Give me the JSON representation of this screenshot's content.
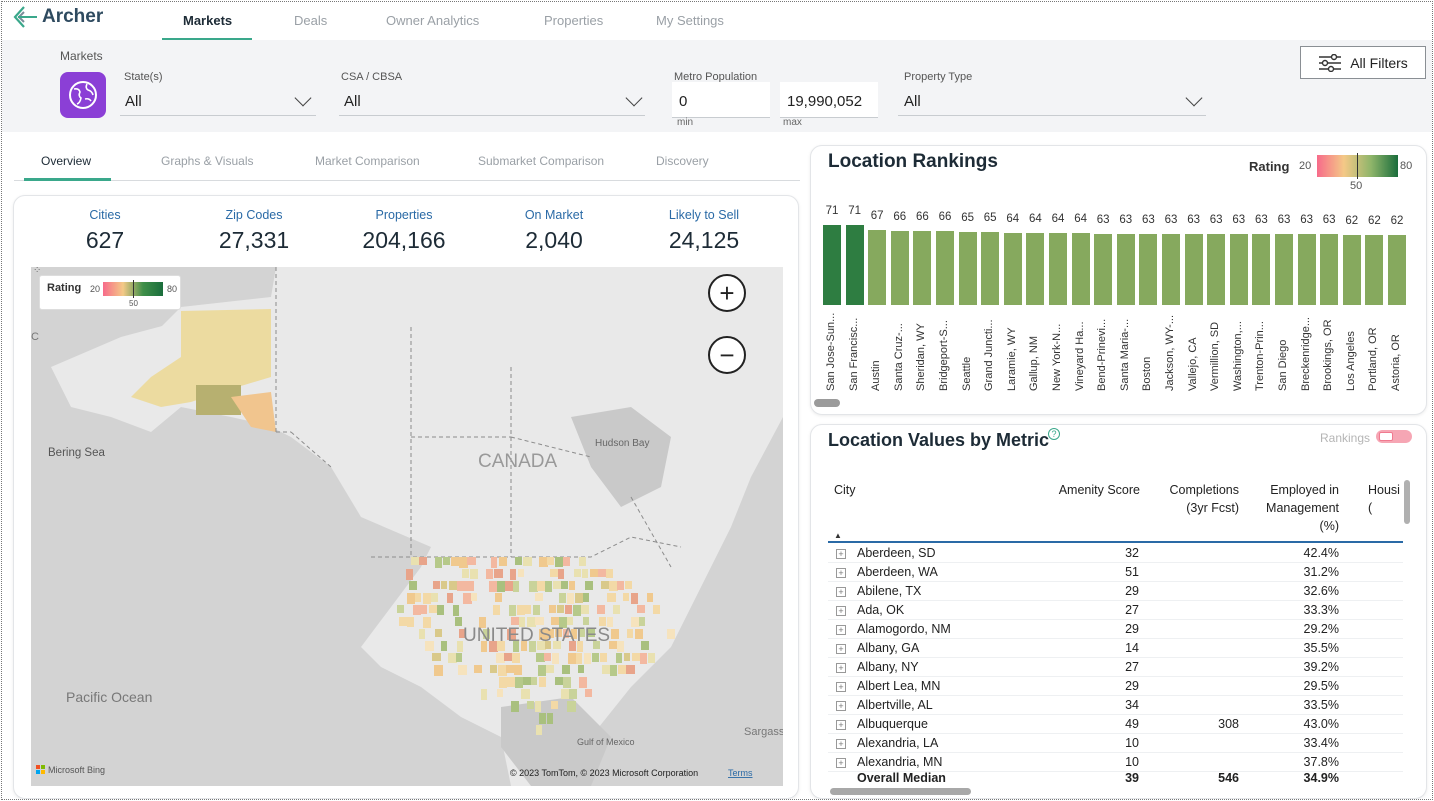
{
  "app": {
    "name": "Archer"
  },
  "nav": {
    "tabs": [
      "Markets",
      "Deals",
      "Owner Analytics",
      "Properties",
      "My Settings"
    ],
    "active": "Markets"
  },
  "filters": {
    "section_label": "Markets",
    "states": {
      "label": "State(s)",
      "value": "All"
    },
    "csa": {
      "label": "CSA / CBSA",
      "value": "All"
    },
    "metro_population": {
      "label": "Metro Population",
      "min": "0",
      "max": "19,990,052",
      "min_caption": "min",
      "max_caption": "max"
    },
    "property_type": {
      "label": "Property Type",
      "value": "All"
    },
    "all_filters_label": "All Filters"
  },
  "subtabs": [
    "Overview",
    "Graphs & Visuals",
    "Market Comparison",
    "Submarket Comparison",
    "Discovery"
  ],
  "kpis": [
    {
      "label": "Cities",
      "value": "627"
    },
    {
      "label": "Zip Codes",
      "value": "27,331"
    },
    {
      "label": "Properties",
      "value": "204,166"
    },
    {
      "label": "On Market",
      "value": "2,040"
    },
    {
      "label": "Likely to Sell",
      "value": "24,125"
    }
  ],
  "map": {
    "legend": {
      "title": "Rating",
      "min": "20",
      "mid": "50",
      "max": "80"
    },
    "labels": {
      "bering": "Bering Sea",
      "canada": "CANADA",
      "hudson": "Hudson Bay",
      "us": "UNITED STATES",
      "pacific": "Pacific Ocean",
      "gulf": "Gulf of Mexico",
      "sargasso": "Sargass",
      "c": "C"
    },
    "attribution": "© 2023 TomTom, © 2023 Microsoft Corporation",
    "terms": "Terms",
    "bing": "Microsoft Bing"
  },
  "rankings": {
    "title": "Location Rankings",
    "legend": {
      "title": "Rating",
      "min": "20",
      "mid": "50",
      "max": "80"
    }
  },
  "chart_data": {
    "type": "bar",
    "title": "Location Rankings",
    "categories": [
      "San Jose-Sun...",
      "San Francisc...",
      "Austin",
      "Santa Cruz-...",
      "Sheridan, WY",
      "Bridgeport-S...",
      "Seattle",
      "Grand Juncti...",
      "Laramie, WY",
      "Gallup, NM",
      "New York-N...",
      "Vineyard Ha...",
      "Bend-Prinevi...",
      "Santa Maria-...",
      "Boston",
      "Jackson, WY-...",
      "Vallejo, CA",
      "Vermillion, SD",
      "Washington,...",
      "Trenton-Prin...",
      "San Diego",
      "Breckenridge...",
      "Brookings, OR",
      "Los Angeles",
      "Portland, OR",
      "Astoria, OR"
    ],
    "values": [
      71,
      71,
      67,
      66,
      66,
      66,
      65,
      65,
      64,
      64,
      64,
      64,
      63,
      63,
      63,
      63,
      63,
      63,
      63,
      63,
      63,
      63,
      63,
      62,
      62,
      62
    ],
    "ylim": [
      0,
      71
    ],
    "colors": {
      "high": "#2e7d41",
      "mid": "#86a95e"
    }
  },
  "metrics": {
    "title": "Location Values by Metric",
    "help_icon": "?",
    "toggle_label": "Rankings",
    "columns": [
      "City",
      "Amenity Score",
      "Completions (3yr Fcst)",
      "Employed in Management (%)",
      "Housi ("
    ],
    "rows": [
      {
        "city": "Aberdeen, SD",
        "amenity": "32",
        "completions": "",
        "employed": "42.4%"
      },
      {
        "city": "Aberdeen, WA",
        "amenity": "51",
        "completions": "",
        "employed": "31.2%"
      },
      {
        "city": "Abilene, TX",
        "amenity": "29",
        "completions": "",
        "employed": "32.6%"
      },
      {
        "city": "Ada, OK",
        "amenity": "27",
        "completions": "",
        "employed": "33.3%"
      },
      {
        "city": "Alamogordo, NM",
        "amenity": "29",
        "completions": "",
        "employed": "29.2%"
      },
      {
        "city": "Albany, GA",
        "amenity": "14",
        "completions": "",
        "employed": "35.5%"
      },
      {
        "city": "Albany, NY",
        "amenity": "27",
        "completions": "",
        "employed": "39.2%"
      },
      {
        "city": "Albert Lea, MN",
        "amenity": "29",
        "completions": "",
        "employed": "29.5%"
      },
      {
        "city": "Albertville, AL",
        "amenity": "34",
        "completions": "",
        "employed": "33.5%"
      },
      {
        "city": "Albuquerque",
        "amenity": "49",
        "completions": "308",
        "employed": "43.0%"
      },
      {
        "city": "Alexandria, LA",
        "amenity": "10",
        "completions": "",
        "employed": "33.4%"
      },
      {
        "city": "Alexandria, MN",
        "amenity": "10",
        "completions": "",
        "employed": "37.8%"
      }
    ],
    "footer": {
      "city": "Overall Median",
      "amenity": "39",
      "completions": "546",
      "employed": "34.9%"
    }
  }
}
